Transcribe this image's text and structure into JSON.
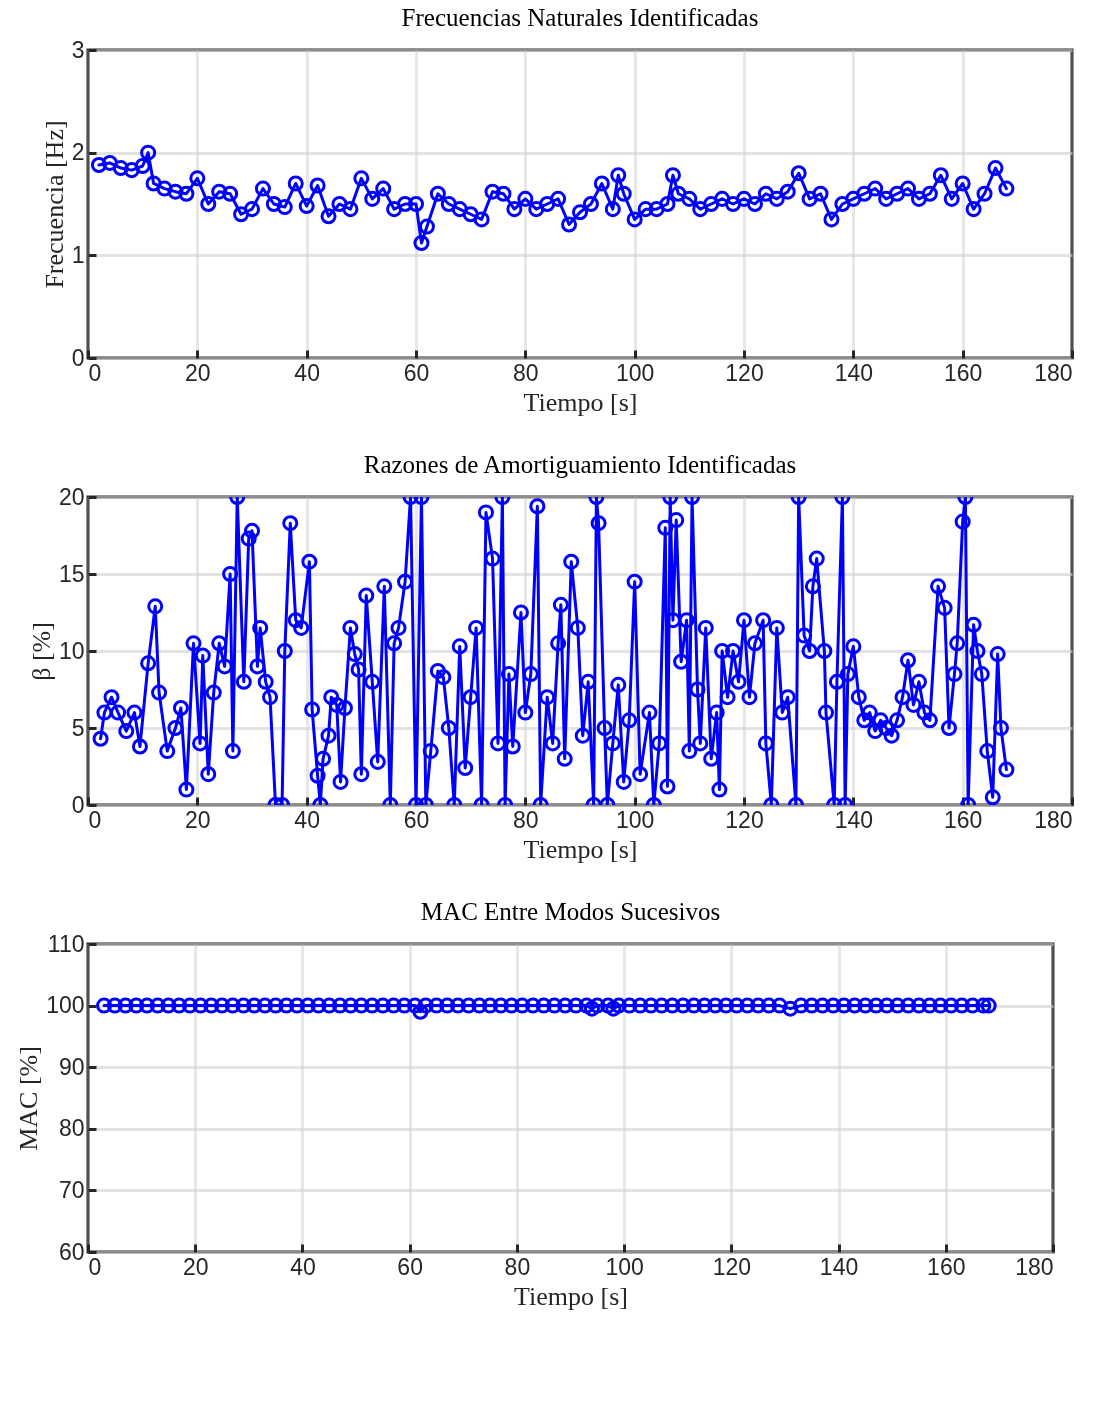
{
  "chart_data": [
    {
      "type": "line",
      "title": "Frecuencias Naturales Identificadas",
      "xlabel": "Tiempo [s]",
      "ylabel": "Frecuencia [Hz]",
      "xlim": [
        0,
        180
      ],
      "xticks": [
        0,
        20,
        40,
        60,
        80,
        100,
        120,
        140,
        160,
        180
      ],
      "ylim": [
        0,
        3
      ],
      "yticks": [
        0,
        1,
        2,
        3
      ],
      "grid": true,
      "marker": "circle",
      "line_style": "solid",
      "x": [
        2,
        4,
        6,
        8,
        10,
        11,
        12,
        14,
        16,
        18,
        20,
        22,
        24,
        26,
        28,
        30,
        32,
        34,
        36,
        38,
        40,
        42,
        44,
        46,
        48,
        50,
        52,
        54,
        56,
        58,
        60,
        61,
        62,
        64,
        66,
        68,
        70,
        72,
        74,
        76,
        78,
        80,
        82,
        84,
        86,
        88,
        90,
        92,
        94,
        96,
        97,
        98,
        100,
        102,
        104,
        106,
        107,
        108,
        110,
        112,
        114,
        116,
        118,
        120,
        122,
        124,
        126,
        128,
        130,
        132,
        134,
        136,
        138,
        140,
        142,
        144,
        146,
        148,
        150,
        152,
        154,
        156,
        158,
        160,
        162,
        164,
        166,
        168
      ],
      "series": [
        {
          "color": "#0000ff",
          "values": [
            1.88,
            1.9,
            1.85,
            1.83,
            1.87,
            2.0,
            1.7,
            1.65,
            1.62,
            1.6,
            1.75,
            1.5,
            1.62,
            1.6,
            1.4,
            1.45,
            1.65,
            1.5,
            1.47,
            1.7,
            1.48,
            1.68,
            1.38,
            1.5,
            1.45,
            1.75,
            1.55,
            1.65,
            1.45,
            1.5,
            1.5,
            1.12,
            1.28,
            1.6,
            1.5,
            1.45,
            1.4,
            1.35,
            1.62,
            1.6,
            1.45,
            1.55,
            1.45,
            1.5,
            1.55,
            1.3,
            1.42,
            1.5,
            1.7,
            1.45,
            1.78,
            1.6,
            1.35,
            1.45,
            1.45,
            1.5,
            1.78,
            1.6,
            1.55,
            1.45,
            1.5,
            1.55,
            1.5,
            1.55,
            1.5,
            1.6,
            1.55,
            1.62,
            1.8,
            1.55,
            1.6,
            1.35,
            1.5,
            1.55,
            1.6,
            1.65,
            1.55,
            1.6,
            1.65,
            1.55,
            1.6,
            1.78,
            1.55,
            1.7,
            1.45,
            1.6,
            1.85,
            1.65
          ]
        }
      ]
    },
    {
      "type": "line",
      "title": "Razones de Amortiguamiento Identificadas",
      "xlabel": "Tiempo [s]",
      "ylabel": "β [%]",
      "xlim": [
        0,
        180
      ],
      "xticks": [
        0,
        20,
        40,
        60,
        80,
        100,
        120,
        140,
        160,
        180
      ],
      "ylim": [
        0,
        20
      ],
      "yticks": [
        0,
        5,
        10,
        15,
        20
      ],
      "grid": true,
      "marker": "circle",
      "line_style": "solid",
      "series": [
        {
          "color": "#0000ff",
          "x": [
            2.3,
            3,
            4.3,
            5.5,
            7,
            8.5,
            9.5,
            11,
            12.3,
            13,
            14.5,
            16,
            17,
            18,
            19.3,
            20.5,
            21,
            22,
            23,
            24,
            25,
            26,
            26.5,
            27.3,
            28.5,
            29.4,
            30,
            31,
            31.5,
            32.5,
            33.3,
            34.3,
            35.5,
            36,
            37,
            38,
            39,
            40.5,
            41,
            42,
            42.5,
            43,
            44,
            44.5,
            45.5,
            46.2,
            47,
            48,
            48.8,
            49.5,
            50,
            50.9,
            52,
            53,
            54.2,
            55.3,
            56,
            56.8,
            58,
            59,
            60,
            61,
            61.8,
            62.7,
            64,
            65,
            66,
            67,
            68,
            69,
            70,
            71,
            72,
            72.8,
            74,
            75,
            75.8,
            76.3,
            77,
            77.7,
            79.2,
            80,
            81,
            82.2,
            82.8,
            84,
            85,
            86,
            86.5,
            87.2,
            88.4,
            89.6,
            90.5,
            91.5,
            92.5,
            93,
            93.4,
            94.5,
            95,
            96,
            97,
            98,
            99,
            100,
            101,
            102.7,
            103.5,
            104.5,
            105.6,
            106,
            106.5,
            107,
            107.6,
            108.5,
            109.5,
            110,
            110.5,
            111.5,
            112,
            113,
            114,
            115,
            115.5,
            116,
            117,
            118,
            119,
            120,
            121,
            122,
            123.5,
            124,
            125,
            126,
            127,
            128,
            129.5,
            130,
            131,
            132,
            132.6,
            133.3,
            134.7,
            135,
            136.5,
            137,
            138,
            138.5,
            139,
            140,
            141,
            142,
            143,
            144,
            145,
            146,
            147,
            148,
            149,
            150,
            151,
            152,
            153,
            154,
            155.5,
            156.7,
            157.5,
            158.5,
            159,
            160,
            160.5,
            161,
            162,
            162.7,
            163.5,
            164.5,
            165.5,
            166.4,
            167,
            168
          ],
          "values": [
            4.3,
            6,
            7,
            6,
            4.8,
            6,
            3.8,
            9.2,
            12.9,
            7.3,
            3.5,
            5,
            6.3,
            1,
            10.5,
            4,
            9.7,
            2,
            7.3,
            10.5,
            9,
            15,
            3.5,
            20,
            8,
            17.3,
            17.8,
            9,
            11.5,
            8,
            7,
            0,
            0,
            10,
            18.3,
            12,
            11.5,
            15.8,
            6.2,
            1.9,
            0,
            3,
            4.5,
            7,
            6.5,
            1.5,
            6.3,
            11.5,
            9.8,
            8.8,
            2,
            13.6,
            8,
            2.8,
            14.2,
            0,
            10.5,
            11.5,
            14.5,
            20,
            0,
            20,
            0,
            3.5,
            8.7,
            8.3,
            5,
            0,
            10.3,
            2.4,
            7,
            11.5,
            0,
            19,
            16,
            4,
            20,
            0,
            8.5,
            3.8,
            12.5,
            6,
            8.5,
            19.4,
            0,
            7,
            4,
            10.5,
            13,
            3,
            15.8,
            11.5,
            4.5,
            8,
            0,
            20,
            18.3,
            5,
            0,
            4,
            7.8,
            1.5,
            5.5,
            14.5,
            2,
            6,
            0,
            4,
            18,
            1.2,
            20,
            12,
            18.5,
            9.3,
            12,
            3.5,
            20,
            7.5,
            4,
            11.5,
            3,
            6,
            1,
            10,
            7,
            10,
            8,
            12,
            7,
            10.5,
            12,
            4,
            0,
            11.5,
            6,
            7,
            0,
            20,
            11,
            10,
            14.2,
            16,
            10,
            6,
            0,
            8,
            20,
            0,
            8.5,
            10.3,
            7,
            5.5,
            6,
            4.8,
            5.5,
            5,
            4.5,
            5.5,
            7,
            9.4,
            6.5,
            8,
            6,
            5.5,
            14.2,
            12.8,
            5,
            8.5,
            10.5,
            18.4,
            20,
            0,
            11.7,
            10,
            8.5,
            3.5,
            0.5,
            9.8,
            5,
            2.3
          ]
        }
      ]
    },
    {
      "type": "line",
      "title": "MAC Entre Modos Sucesivos",
      "xlabel": "Tiempo [s]",
      "ylabel": "MAC [%]",
      "xlim": [
        0,
        180
      ],
      "xticks": [
        0,
        20,
        40,
        60,
        80,
        100,
        120,
        140,
        160,
        180
      ],
      "ylim": [
        60,
        110
      ],
      "yticks": [
        60,
        70,
        80,
        90,
        100,
        110
      ],
      "grid": true,
      "marker": "circle",
      "line_style": "solid",
      "x": [
        3,
        5,
        7,
        9,
        11,
        13,
        15,
        17,
        19,
        21,
        23,
        25,
        27,
        29,
        31,
        33,
        35,
        37,
        39,
        41,
        43,
        45,
        47,
        49,
        51,
        53,
        55,
        57,
        59,
        61,
        62,
        63,
        65,
        67,
        69,
        71,
        73,
        75,
        77,
        79,
        81,
        83,
        85,
        87,
        89,
        91,
        93,
        94,
        95,
        97,
        98,
        99,
        101,
        103,
        105,
        107,
        109,
        111,
        113,
        115,
        117,
        119,
        121,
        123,
        125,
        127,
        129,
        131,
        133,
        135,
        137,
        139,
        141,
        143,
        145,
        147,
        149,
        151,
        153,
        155,
        157,
        159,
        161,
        163,
        165,
        167,
        168
      ],
      "series": [
        {
          "color": "#0000ff",
          "values": [
            100,
            100,
            100,
            100,
            100,
            100,
            100,
            100,
            100,
            100,
            100,
            100,
            100,
            100,
            100,
            100,
            100,
            100,
            100,
            100,
            100,
            100,
            100,
            100,
            100,
            100,
            100,
            100,
            100,
            100,
            99,
            100,
            100,
            100,
            100,
            100,
            100,
            100,
            100,
            100,
            100,
            100,
            100,
            100,
            100,
            100,
            100,
            99.5,
            100,
            100,
            99.5,
            100,
            100,
            100,
            100,
            100,
            100,
            100,
            100,
            100,
            100,
            100,
            100,
            100,
            100,
            100,
            100,
            99.5,
            100,
            100,
            100,
            100,
            100,
            100,
            100,
            100,
            100,
            100,
            100,
            100,
            100,
            100,
            100,
            100,
            100,
            100,
            100
          ]
        }
      ]
    }
  ]
}
